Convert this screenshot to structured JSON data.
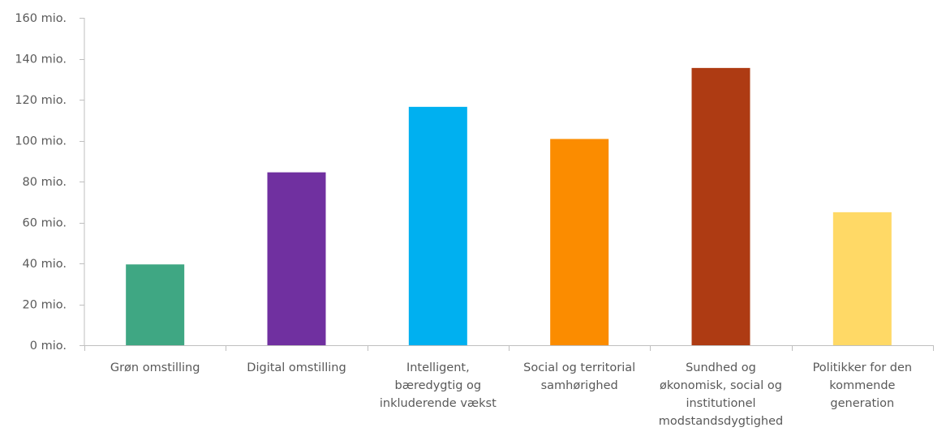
{
  "chart_data": {
    "type": "bar",
    "title": "",
    "xlabel": "",
    "ylabel": "",
    "ylim": [
      0,
      160
    ],
    "y_ticks": [
      {
        "value": 0,
        "label": "0 mio."
      },
      {
        "value": 20,
        "label": "20 mio."
      },
      {
        "value": 40,
        "label": "40 mio."
      },
      {
        "value": 60,
        "label": "60 mio."
      },
      {
        "value": 80,
        "label": "80 mio."
      },
      {
        "value": 100,
        "label": "100 mio."
      },
      {
        "value": 120,
        "label": "120 mio."
      },
      {
        "value": 140,
        "label": "140 mio."
      },
      {
        "value": 160,
        "label": "160 mio."
      }
    ],
    "grid": false,
    "legend": "none",
    "categories": [
      [
        "Grøn omstilling"
      ],
      [
        "Digital omstilling"
      ],
      [
        "Intelligent,",
        "bæredygtig og",
        "inkluderende vækst"
      ],
      [
        "Social og territorial",
        "samhørighed"
      ],
      [
        "Sundhed og",
        "økonomisk, social og",
        "institutionel",
        "modstandsdygtighed"
      ],
      [
        "Politikker for den",
        "kommende",
        "generation"
      ]
    ],
    "values": [
      39.5,
      84.5,
      116.5,
      100.8,
      135.5,
      65
    ],
    "colors": [
      "#3fa783",
      "#7030a0",
      "#00b0f0",
      "#fb8c00",
      "#ae3b13",
      "#ffd966"
    ]
  }
}
